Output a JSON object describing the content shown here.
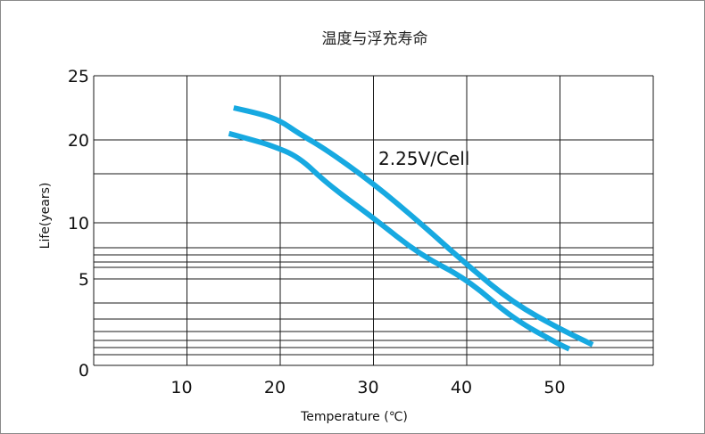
{
  "chart_data": {
    "type": "line",
    "title": "温度与浮充寿命",
    "xlabel": "Temperature (℃)",
    "ylabel": "Life(years)",
    "x_ticks": [
      10,
      20,
      30,
      40,
      50
    ],
    "y_ticks": [
      {
        "value": 0,
        "label": "0"
      },
      {
        "value": 5,
        "label": "5"
      },
      {
        "value": 10,
        "label": "10"
      },
      {
        "value": 20,
        "label": "20"
      },
      {
        "value": 25,
        "label": "25"
      }
    ],
    "y_grid_values": [
      0,
      0.5,
      1,
      1.5,
      2,
      3,
      4,
      5,
      6,
      7,
      8,
      9,
      10,
      15,
      20,
      25
    ],
    "xlim": [
      0,
      60
    ],
    "ylim": [
      0,
      25
    ],
    "y_scale": "non-linear (piecewise)",
    "grid": true,
    "annotations": [
      {
        "text": "2.25V/Cell",
        "x": 30,
        "y": 17.5
      }
    ],
    "line_color": "#17a9e1",
    "series": [
      {
        "x": [
          15,
          18,
          20,
          22,
          25,
          30,
          35,
          40,
          45,
          50,
          53.5
        ],
        "y": [
          22.5,
          22,
          21.5,
          20.5,
          18.5,
          14,
          10,
          6.5,
          4,
          2.2,
          1.2
        ]
      },
      {
        "x": [
          14.5,
          17,
          19,
          22,
          25,
          30,
          35,
          40,
          45,
          50,
          51
        ],
        "y": [
          20.5,
          20,
          19.2,
          17.5,
          14,
          10.5,
          8,
          5,
          3,
          1.2,
          0.9
        ]
      }
    ]
  }
}
